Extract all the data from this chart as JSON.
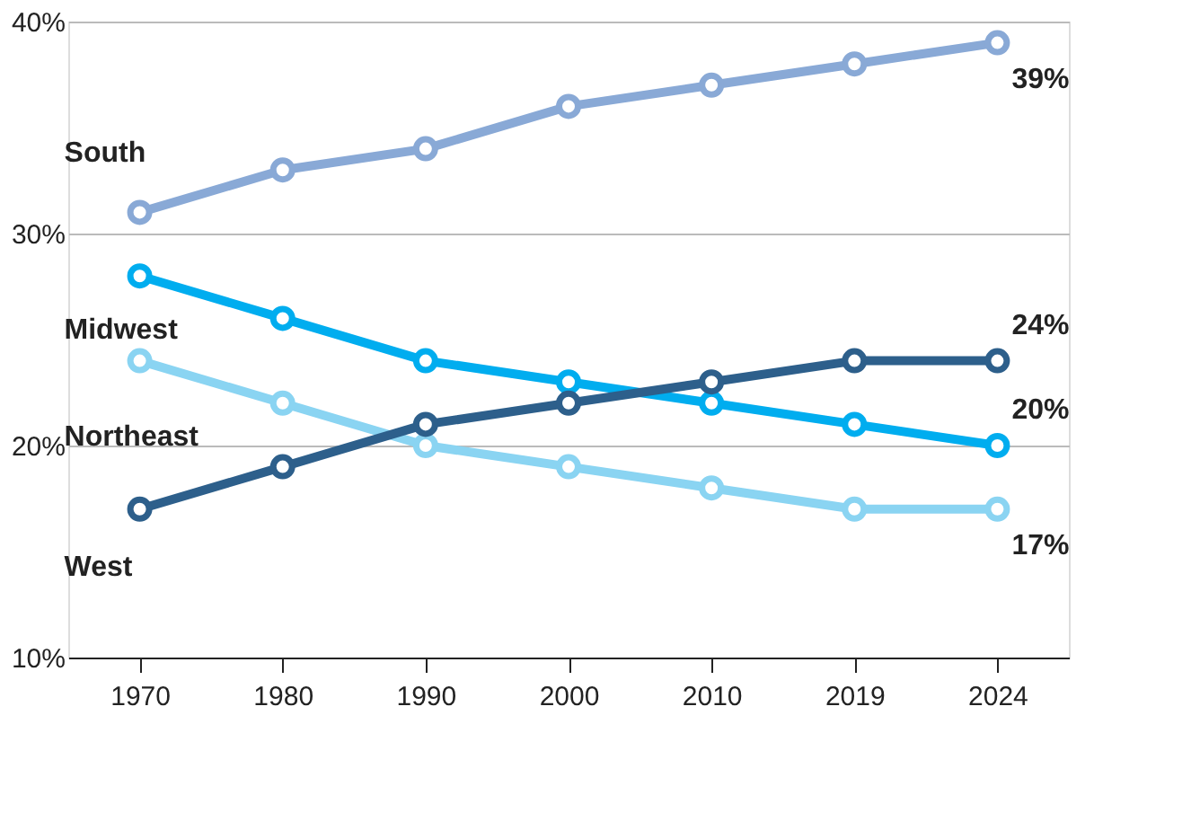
{
  "chart_data": {
    "type": "line",
    "categories": [
      "1970",
      "1980",
      "1990",
      "2000",
      "2010",
      "2019",
      "2024"
    ],
    "series": [
      {
        "name": "South",
        "color": "#89a9d6",
        "values": [
          31,
          33,
          34,
          36,
          37,
          38,
          39
        ],
        "value_labels": [
          null,
          null,
          null,
          null,
          null,
          null,
          "39%"
        ]
      },
      {
        "name": "Midwest",
        "color": "#00adef",
        "values": [
          28,
          26,
          24,
          23,
          22,
          21,
          20
        ],
        "value_labels": [
          null,
          null,
          null,
          null,
          null,
          null,
          "20%"
        ]
      },
      {
        "name": "Northeast",
        "color": "#8ad4f2",
        "values": [
          24,
          22,
          20,
          19,
          18,
          17,
          17
        ],
        "value_labels": [
          null,
          null,
          null,
          null,
          null,
          null,
          "17%"
        ]
      },
      {
        "name": "West",
        "color": "#2d5f8b",
        "values": [
          17,
          19,
          21,
          22,
          23,
          24,
          24
        ],
        "value_labels": [
          null,
          null,
          null,
          null,
          null,
          null,
          "24%"
        ]
      }
    ],
    "ylim": [
      10,
      40
    ],
    "yticks": [
      {
        "value": 10,
        "label": "10%"
      },
      {
        "value": 20,
        "label": "20%"
      },
      {
        "value": 30,
        "label": "30%"
      },
      {
        "value": 40,
        "label": "40%"
      }
    ],
    "grid": "y",
    "marker": "circle",
    "line_style": "solid"
  }
}
